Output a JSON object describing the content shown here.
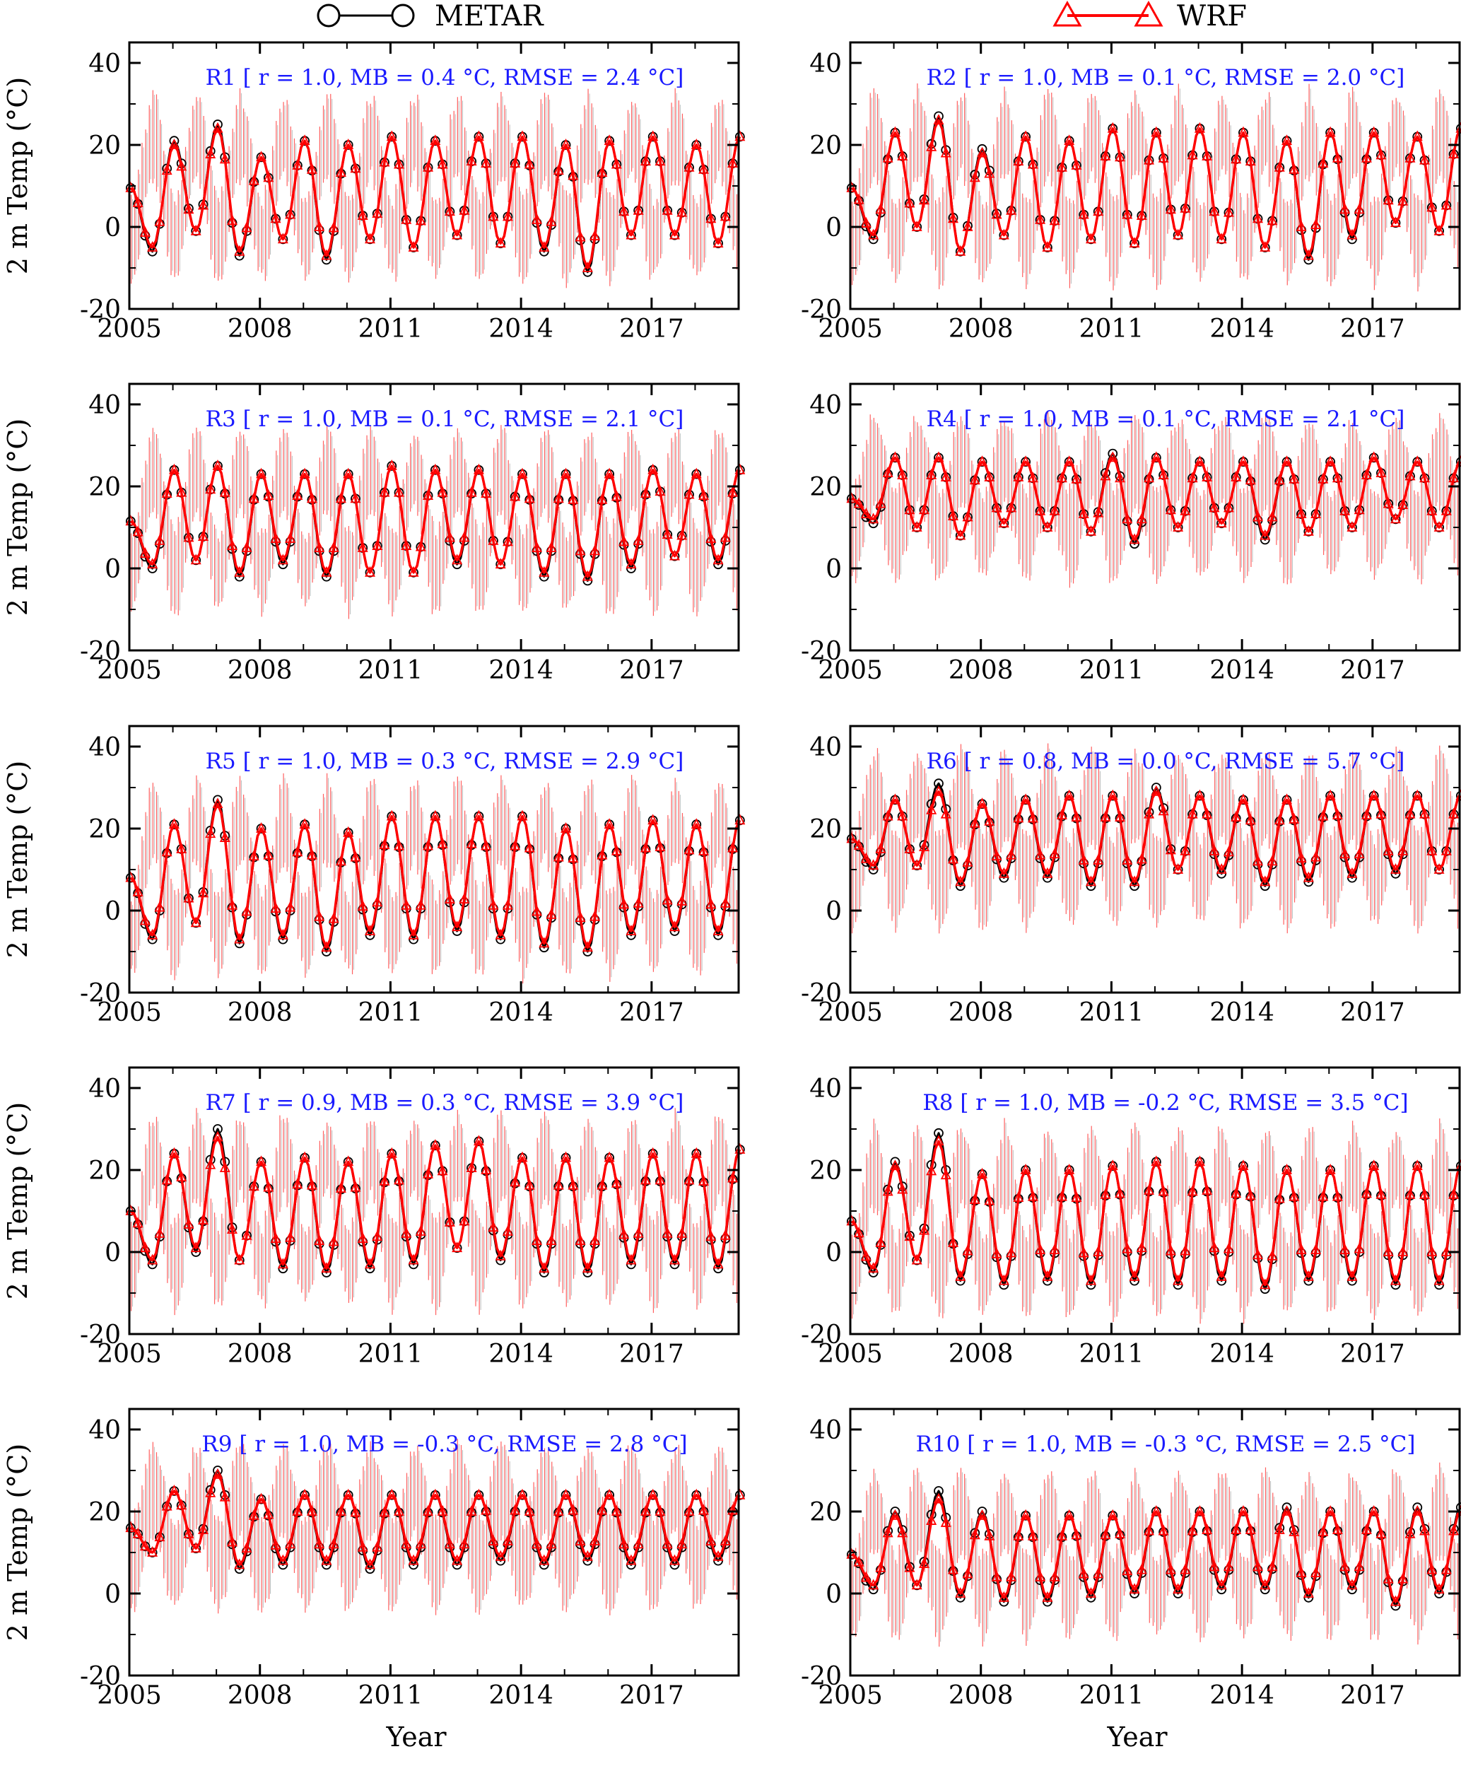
{
  "legend": [
    {
      "label": "METAR",
      "color": "#000000",
      "marker": "circle"
    },
    {
      "label": "WRF",
      "color": "#ff0000",
      "marker": "triangle"
    }
  ],
  "colors": {
    "metar": "#000000",
    "wrf": "#ff0000",
    "stats": "#1a1aff",
    "error_bars": "#ff0000"
  },
  "chart_data": [
    {
      "type": "line",
      "panel": "R1",
      "stats": "R1 [ r = 1.0, MB = 0.4 °C, RMSE = 2.4 °C]",
      "ylabel": "2 m Temp (°C)",
      "xlabel": "",
      "xlim": [
        2005,
        2019
      ],
      "ylim": [
        -20,
        45
      ],
      "x_ticks": [
        "2005",
        "2008",
        "2011",
        "2014",
        "2017"
      ],
      "y_ticks": [
        "40",
        "20",
        "0",
        "-20"
      ],
      "mean": 9.5,
      "amplitude": 12.5,
      "grid": false,
      "series": [
        {
          "name": "METAR",
          "values": [
            -6,
            21,
            -1,
            25,
            -7,
            17,
            -3,
            21,
            -8,
            20,
            -3,
            22,
            -5,
            21,
            -2,
            22,
            -4,
            22,
            -6,
            20,
            -11,
            21,
            -2,
            22,
            -2,
            20,
            -4,
            22
          ]
        },
        {
          "name": "WRF",
          "values": [
            -5,
            20,
            -1,
            24,
            -6,
            17,
            -3,
            21,
            -7,
            20,
            -3,
            22,
            -5,
            21,
            -2,
            22,
            -4,
            22,
            -5,
            20,
            -10,
            21,
            -2,
            22,
            -2,
            20,
            -4,
            22
          ]
        }
      ]
    },
    {
      "type": "line",
      "panel": "R2",
      "stats": "R2 [ r = 1.0, MB = 0.1 °C, RMSE = 2.0 °C]",
      "ylabel": "",
      "xlabel": "",
      "xlim": [
        2005,
        2019
      ],
      "ylim": [
        -20,
        45
      ],
      "x_ticks": [
        "2005",
        "2008",
        "2011",
        "2014",
        "2017"
      ],
      "y_ticks": [
        "40",
        "20",
        "0",
        "-20"
      ],
      "mean": 9.5,
      "amplitude": 13.5,
      "grid": false,
      "series": [
        {
          "name": "METAR",
          "values": [
            -3,
            23,
            0,
            27,
            -6,
            19,
            -2,
            22,
            -5,
            21,
            -3,
            24,
            -4,
            23,
            -2,
            24,
            -3,
            23,
            -5,
            21,
            -8,
            23,
            -3,
            23,
            1,
            22,
            -1,
            24
          ]
        },
        {
          "name": "WRF",
          "values": [
            -2,
            23,
            0,
            26,
            -6,
            18,
            -2,
            22,
            -5,
            21,
            -3,
            24,
            -4,
            23,
            -2,
            24,
            -3,
            23,
            -5,
            21,
            -7,
            23,
            -2,
            23,
            1,
            22,
            -1,
            24
          ]
        }
      ]
    },
    {
      "type": "line",
      "panel": "R3",
      "stats": "R3 [ r = 1.0, MB = 0.1 °C, RMSE = 2.1 °C]",
      "ylabel": "2 m Temp (°C)",
      "xlabel": "",
      "xlim": [
        2005,
        2019
      ],
      "ylim": [
        -20,
        45
      ],
      "x_ticks": [
        "2005",
        "2008",
        "2011",
        "2014",
        "2017"
      ],
      "y_ticks": [
        "40",
        "20",
        "0",
        "-20"
      ],
      "mean": 11.5,
      "amplitude": 12.5,
      "grid": false,
      "series": [
        {
          "name": "METAR",
          "values": [
            0,
            24,
            2,
            25,
            -2,
            23,
            1,
            23,
            -2,
            23,
            -1,
            25,
            -1,
            24,
            1,
            24,
            1,
            23,
            -2,
            23,
            -3,
            23,
            0,
            24,
            3,
            23,
            1,
            24
          ]
        },
        {
          "name": "WRF",
          "values": [
            1,
            24,
            2,
            25,
            -1,
            23,
            2,
            23,
            -1,
            23,
            -1,
            25,
            -1,
            24,
            2,
            24,
            1,
            23,
            -1,
            23,
            -2,
            23,
            1,
            24,
            3,
            23,
            2,
            24
          ]
        }
      ]
    },
    {
      "type": "line",
      "panel": "R4",
      "stats": "R4 [ r = 1.0, MB = 0.1 °C, RMSE = 2.1 °C]",
      "ylabel": "",
      "xlabel": "",
      "xlim": [
        2005,
        2019
      ],
      "ylim": [
        -20,
        45
      ],
      "x_ticks": [
        "2005",
        "2008",
        "2011",
        "2014",
        "2017"
      ],
      "y_ticks": [
        "40",
        "20",
        "0",
        "-20"
      ],
      "mean": 17,
      "amplitude": 9,
      "grid": false,
      "series": [
        {
          "name": "METAR",
          "values": [
            11,
            27,
            10,
            27,
            8,
            26,
            11,
            26,
            10,
            26,
            9,
            28,
            6,
            27,
            10,
            26,
            11,
            26,
            7,
            26,
            9,
            26,
            10,
            27,
            12,
            26,
            10,
            26
          ]
        },
        {
          "name": "WRF",
          "values": [
            12,
            27,
            10,
            27,
            8,
            26,
            11,
            26,
            10,
            26,
            9,
            27,
            7,
            27,
            10,
            26,
            11,
            26,
            8,
            26,
            9,
            26,
            10,
            27,
            12,
            26,
            10,
            26
          ]
        }
      ]
    },
    {
      "type": "line",
      "panel": "R5",
      "stats": "R5 [ r = 1.0, MB = 0.3 °C, RMSE = 2.9 °C]",
      "ylabel": "2 m Temp (°C)",
      "xlabel": "",
      "xlim": [
        2005,
        2019
      ],
      "ylim": [
        -20,
        45
      ],
      "x_ticks": [
        "2005",
        "2008",
        "2011",
        "2014",
        "2017"
      ],
      "y_ticks": [
        "40",
        "20",
        "0",
        "-20"
      ],
      "mean": 8,
      "amplitude": 14,
      "grid": false,
      "series": [
        {
          "name": "METAR",
          "values": [
            -7,
            21,
            -3,
            27,
            -8,
            20,
            -7,
            21,
            -10,
            19,
            -6,
            23,
            -7,
            23,
            -5,
            23,
            -7,
            23,
            -9,
            20,
            -10,
            21,
            -6,
            22,
            -5,
            21,
            -6,
            22
          ]
        },
        {
          "name": "WRF",
          "values": [
            -6,
            21,
            -3,
            26,
            -7,
            20,
            -6,
            21,
            -9,
            19,
            -5,
            23,
            -6,
            23,
            -4,
            23,
            -6,
            23,
            -8,
            20,
            -9,
            21,
            -5,
            22,
            -4,
            21,
            -5,
            22
          ]
        }
      ]
    },
    {
      "type": "line",
      "panel": "R6",
      "stats": "R6 [ r = 0.8, MB = 0.0 °C, RMSE = 5.7 °C]",
      "ylabel": "",
      "xlabel": "",
      "xlim": [
        2005,
        2019
      ],
      "ylim": [
        -20,
        45
      ],
      "x_ticks": [
        "2005",
        "2008",
        "2011",
        "2014",
        "2017"
      ],
      "y_ticks": [
        "40",
        "20",
        "0",
        "-20"
      ],
      "mean": 17.5,
      "amplitude": 10.5,
      "grid": false,
      "series": [
        {
          "name": "METAR",
          "values": [
            10,
            27,
            11,
            31,
            6,
            26,
            8,
            27,
            8,
            28,
            6,
            28,
            6,
            30,
            10,
            28,
            9,
            27,
            6,
            27,
            7,
            28,
            8,
            28,
            9,
            28,
            10,
            28
          ]
        },
        {
          "name": "WRF",
          "values": [
            11,
            27,
            11,
            29,
            7,
            26,
            9,
            27,
            9,
            28,
            7,
            28,
            7,
            29,
            10,
            28,
            10,
            27,
            7,
            27,
            8,
            28,
            9,
            28,
            10,
            28,
            10,
            28
          ]
        }
      ]
    },
    {
      "type": "line",
      "panel": "R7",
      "stats": "R7 [ r = 0.9, MB = 0.3 °C, RMSE = 3.9 °C]",
      "ylabel": "2 m Temp (°C)",
      "xlabel": "",
      "xlim": [
        2005,
        2019
      ],
      "ylim": [
        -20,
        45
      ],
      "x_ticks": [
        "2005",
        "2008",
        "2011",
        "2014",
        "2017"
      ],
      "y_ticks": [
        "40",
        "20",
        "0",
        "-20"
      ],
      "mean": 10,
      "amplitude": 13.5,
      "grid": false,
      "series": [
        {
          "name": "METAR",
          "values": [
            -3,
            24,
            0,
            30,
            -2,
            22,
            -4,
            23,
            -5,
            22,
            -4,
            24,
            -3,
            26,
            1,
            27,
            -2,
            23,
            -5,
            23,
            -5,
            23,
            -3,
            24,
            -3,
            24,
            -4,
            25
          ]
        },
        {
          "name": "WRF",
          "values": [
            -2,
            24,
            1,
            28,
            -2,
            22,
            -3,
            23,
            -4,
            22,
            -3,
            24,
            -2,
            26,
            1,
            27,
            -1,
            23,
            -4,
            23,
            -4,
            23,
            -2,
            24,
            -2,
            24,
            -3,
            25
          ]
        }
      ]
    },
    {
      "type": "line",
      "panel": "R8",
      "stats": "R8 [ r = 1.0, MB = -0.2 °C, RMSE = 3.5 °C]",
      "ylabel": "",
      "xlabel": "",
      "xlim": [
        2005,
        2019
      ],
      "ylim": [
        -20,
        45
      ],
      "x_ticks": [
        "2005",
        "2008",
        "2011",
        "2014",
        "2017"
      ],
      "y_ticks": [
        "40",
        "20",
        "0",
        "-20"
      ],
      "mean": 7.5,
      "amplitude": 13.5,
      "grid": false,
      "series": [
        {
          "name": "METAR",
          "values": [
            -5,
            22,
            -2,
            29,
            -7,
            19,
            -8,
            20,
            -7,
            20,
            -8,
            21,
            -7,
            22,
            -8,
            22,
            -7,
            21,
            -9,
            20,
            -7,
            20,
            -7,
            21,
            -8,
            21,
            -8,
            21
          ]
        },
        {
          "name": "WRF",
          "values": [
            -4,
            21,
            -2,
            27,
            -6,
            19,
            -7,
            20,
            -6,
            20,
            -7,
            21,
            -6,
            22,
            -7,
            22,
            -6,
            21,
            -8,
            20,
            -6,
            20,
            -6,
            21,
            -7,
            21,
            -7,
            21
          ]
        }
      ]
    },
    {
      "type": "line",
      "panel": "R9",
      "stats": "R9 [ r = 1.0, MB = -0.3 °C, RMSE = 2.8 °C]",
      "ylabel": "2 m Temp (°C)",
      "xlabel": "Year",
      "xlim": [
        2005,
        2019
      ],
      "ylim": [
        -20,
        45
      ],
      "x_ticks": [
        "2005",
        "2008",
        "2011",
        "2014",
        "2017"
      ],
      "y_ticks": [
        "40",
        "20",
        "0",
        "-20"
      ],
      "mean": 16,
      "amplitude": 9,
      "grid": false,
      "series": [
        {
          "name": "METAR",
          "values": [
            10,
            25,
            11,
            30,
            6,
            23,
            7,
            24,
            7,
            24,
            6,
            24,
            7,
            24,
            7,
            24,
            8,
            24,
            7,
            24,
            8,
            24,
            7,
            24,
            7,
            24,
            8,
            24
          ]
        },
        {
          "name": "WRF",
          "values": [
            10,
            25,
            11,
            29,
            7,
            23,
            8,
            24,
            8,
            24,
            7,
            24,
            8,
            24,
            8,
            24,
            9,
            24,
            8,
            24,
            9,
            24,
            8,
            24,
            8,
            24,
            9,
            24
          ]
        }
      ]
    },
    {
      "type": "line",
      "panel": "R10",
      "stats": "R10 [ r = 1.0, MB = -0.3 °C, RMSE = 2.5 °C]",
      "ylabel": "",
      "xlabel": "Year",
      "xlim": [
        2005,
        2019
      ],
      "ylim": [
        -20,
        45
      ],
      "x_ticks": [
        "2005",
        "2008",
        "2011",
        "2014",
        "2017"
      ],
      "y_ticks": [
        "40",
        "20",
        "0",
        "-20"
      ],
      "mean": 9.5,
      "amplitude": 10.5,
      "grid": false,
      "series": [
        {
          "name": "METAR",
          "values": [
            1,
            20,
            2,
            25,
            -1,
            20,
            -2,
            19,
            -2,
            19,
            -1,
            19,
            0,
            20,
            0,
            20,
            1,
            20,
            1,
            21,
            -1,
            20,
            1,
            20,
            -3,
            21,
            0,
            21
          ]
        },
        {
          "name": "WRF",
          "values": [
            2,
            19,
            2,
            23,
            0,
            19,
            -1,
            19,
            -1,
            19,
            0,
            19,
            1,
            20,
            1,
            20,
            2,
            20,
            2,
            20,
            0,
            20,
            2,
            20,
            -2,
            20,
            1,
            20
          ]
        }
      ]
    }
  ]
}
